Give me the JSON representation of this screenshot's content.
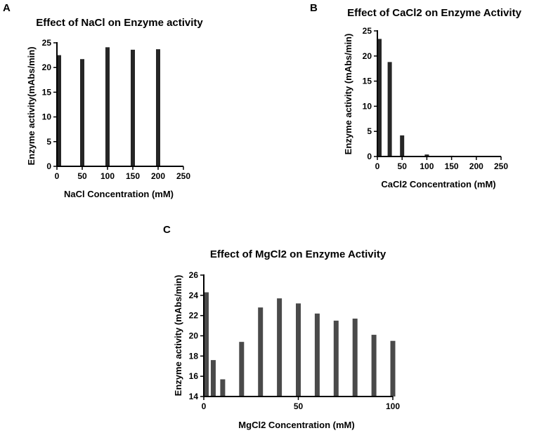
{
  "chart_data": [
    {
      "panel": "A",
      "type": "bar",
      "title": "Effect of NaCl on Enzyme activity",
      "xlabel": "NaCl Concentration (mM)",
      "ylabel": "Enzyme activity(mAbs/min)",
      "x": [
        0,
        50,
        100,
        150,
        200
      ],
      "values": [
        22.5,
        21.7,
        24.1,
        23.6,
        23.7
      ],
      "xlim": [
        0,
        250
      ],
      "ylim": [
        0,
        25
      ],
      "xticks": [
        0,
        50,
        100,
        150,
        200,
        250
      ],
      "yticks": [
        0,
        5,
        10,
        15,
        20,
        25
      ],
      "bar_color": "#262626"
    },
    {
      "panel": "B",
      "type": "bar",
      "title": "Effect of CaCl2 on Enzyme Activity",
      "xlabel": "CaCl2 Concentration (mM)",
      "ylabel": "Enzyme activity (mAbs/min)",
      "x": [
        0,
        25,
        50,
        100,
        150,
        200
      ],
      "values": [
        23.4,
        18.8,
        4.2,
        0.4,
        0.15,
        0.1
      ],
      "xlim": [
        0,
        250
      ],
      "ylim": [
        0,
        25
      ],
      "xticks": [
        0,
        50,
        100,
        150,
        200,
        250
      ],
      "yticks": [
        0,
        5,
        10,
        15,
        20,
        25
      ],
      "bar_color": "#262626"
    },
    {
      "panel": "C",
      "type": "bar",
      "title": "Effect of MgCl2 on Enzyme Activity",
      "xlabel": "MgCl2 Concentration (mM)",
      "ylabel": "Enzyme activity (mAbs/min)",
      "x": [
        0,
        5,
        10,
        20,
        30,
        40,
        50,
        60,
        70,
        80,
        90,
        100
      ],
      "values": [
        24.3,
        17.6,
        15.7,
        19.4,
        22.8,
        23.7,
        23.2,
        22.2,
        21.5,
        21.7,
        20.1,
        19.5
      ],
      "xlim": [
        0,
        100
      ],
      "ylim": [
        14,
        26
      ],
      "xticks": [
        0,
        50,
        100
      ],
      "yticks": [
        14,
        16,
        18,
        20,
        22,
        24,
        26
      ],
      "bar_color": "#4a4a4a"
    }
  ]
}
